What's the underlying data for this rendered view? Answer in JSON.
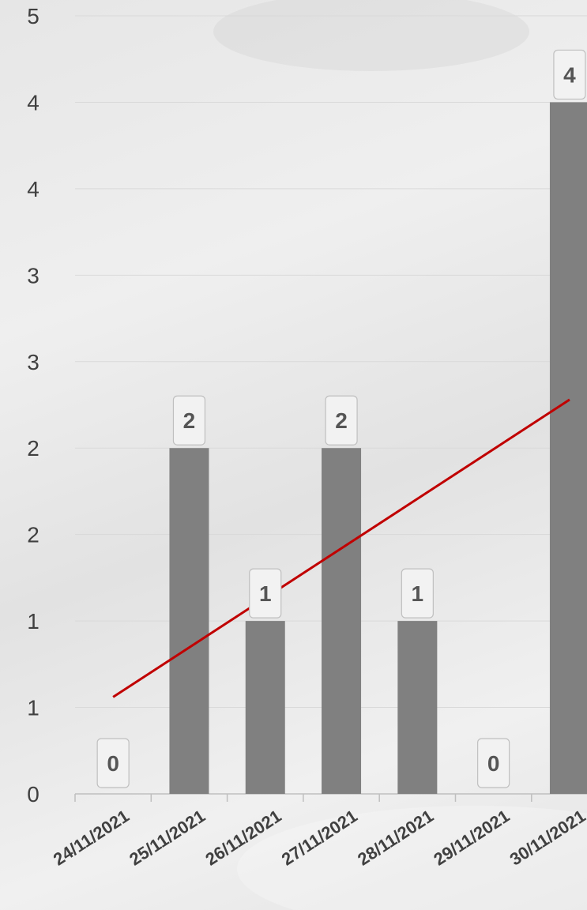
{
  "chart_data": {
    "type": "bar",
    "categories": [
      "24/11/2021",
      "25/11/2021",
      "26/11/2021",
      "27/11/2021",
      "28/11/2021",
      "29/11/2021",
      "30/11/2021"
    ],
    "values": [
      0,
      2,
      1,
      2,
      1,
      0,
      4
    ],
    "data_labels": [
      "0",
      "2",
      "1",
      "2",
      "1",
      "0",
      "4"
    ],
    "ytick_labels": [
      "0",
      "1",
      "1",
      "2",
      "2",
      "3",
      "3",
      "4",
      "4",
      "5"
    ],
    "ytick_values": [
      0,
      0.5,
      1,
      1.5,
      2,
      2.5,
      3,
      3.5,
      4,
      4.5
    ],
    "ylim": [
      0,
      4.5
    ],
    "trendline": {
      "type": "linear",
      "start": 0.56,
      "end": 2.28
    },
    "colors": {
      "bar": "#808080",
      "trendline": "#C00000",
      "grid": "#d9d9d9",
      "label_bg": "#f2f2f2",
      "label_border": "#bfbfbf"
    },
    "grid": true,
    "legend": "none"
  }
}
